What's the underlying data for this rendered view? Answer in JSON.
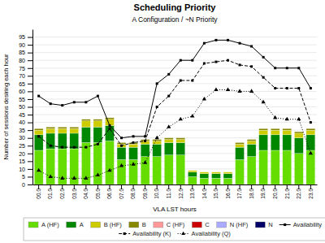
{
  "chart_data": {
    "type": "bar",
    "stacked": true,
    "title": "Scheduling Priority",
    "subtitle": "A Configuration / ~N Priority",
    "x_label": "VLA LST hours",
    "y_label": "Number of sessions desiring each hour",
    "categories": [
      "00.0",
      "01.0",
      "02.0",
      "03.0",
      "04.0",
      "05.0",
      "06.0",
      "07.0",
      "08.0",
      "09.0",
      "10.0",
      "11.0",
      "12.0",
      "13.0",
      "14.0",
      "15.0",
      "16.0",
      "17.0",
      "18.0",
      "19.0",
      "20.0",
      "21.0",
      "22.0",
      "23.0"
    ],
    "series": [
      {
        "name": "A (HF)",
        "color": "#66dd00",
        "values": [
          22,
          23,
          23,
          23,
          27,
          27,
          28,
          16,
          16,
          18,
          18,
          19,
          19,
          5,
          4,
          4,
          4,
          16,
          18,
          22,
          22,
          22,
          20,
          22
        ]
      },
      {
        "name": "A",
        "color": "#008800",
        "values": [
          10,
          10,
          10,
          10,
          10,
          10,
          10,
          8,
          8,
          8,
          8,
          8,
          8,
          3,
          3,
          3,
          3,
          8,
          8,
          10,
          10,
          10,
          10,
          10
        ]
      },
      {
        "name": "B (HF)",
        "color": "#cccc00",
        "values": [
          3,
          3,
          3,
          3,
          4,
          4,
          4,
          2,
          2,
          2,
          2,
          2,
          2,
          1,
          1,
          1,
          1,
          2,
          2,
          3,
          3,
          3,
          3,
          3
        ]
      },
      {
        "name": "B",
        "color": "#888800",
        "values": [
          1,
          1,
          1,
          1,
          1,
          1,
          1,
          1,
          1,
          1,
          1,
          1,
          1,
          0,
          0,
          0,
          0,
          1,
          1,
          1,
          1,
          1,
          1,
          1
        ]
      },
      {
        "name": "C (HF)",
        "color": "#ff9999",
        "values": [
          0,
          0,
          0,
          0,
          0,
          0,
          0,
          0,
          0,
          0,
          0,
          0,
          0,
          0,
          0,
          0,
          0,
          0,
          0,
          0,
          0,
          0,
          0,
          0
        ]
      },
      {
        "name": "C",
        "color": "#cc0000",
        "values": [
          0,
          0,
          0,
          0,
          0,
          0,
          0,
          0,
          0,
          0,
          0,
          0,
          0,
          0,
          0,
          0,
          0,
          0,
          0,
          0,
          0,
          0,
          0,
          0
        ]
      },
      {
        "name": "N (HF)",
        "color": "#aaaaff",
        "values": [
          0,
          0,
          0,
          0,
          0,
          0,
          0,
          0,
          0,
          0,
          0,
          0,
          0,
          0,
          0,
          0,
          0,
          0,
          0,
          0,
          0,
          0,
          0,
          0
        ]
      },
      {
        "name": "N",
        "color": "#000066",
        "values": [
          0,
          0,
          0,
          0,
          0,
          0,
          0,
          0,
          0,
          0,
          0,
          0,
          0,
          0,
          0,
          0,
          0,
          0,
          0,
          0,
          0,
          0,
          0,
          0
        ]
      },
      {
        "name": "Availability",
        "type": "line",
        "color": "#000000",
        "line_style": "solid",
        "marker": "square",
        "values": [
          57,
          52,
          51,
          53,
          53,
          57,
          38,
          30,
          31,
          31,
          65,
          71,
          80,
          80,
          91,
          93,
          93,
          91,
          89,
          82,
          75,
          75,
          75,
          62
        ]
      },
      {
        "name": "Availability (K)",
        "type": "line",
        "color": "#000000",
        "line_style": "dashed",
        "marker": "square",
        "values": [
          31,
          25,
          24,
          24,
          24,
          26,
          36,
          25,
          27,
          28,
          50,
          57,
          67,
          67,
          78,
          79,
          80,
          77,
          76,
          69,
          62,
          62,
          62,
          40
        ]
      },
      {
        "name": "Availability (Q)",
        "type": "line",
        "color": "#000000",
        "line_style": "dotted",
        "marker": "triangle",
        "values": [
          9,
          5,
          4,
          4,
          4,
          6,
          9,
          12,
          13,
          14,
          30,
          37,
          42,
          44,
          55,
          61,
          61,
          60,
          60,
          53,
          43,
          42,
          42,
          20
        ]
      }
    ],
    "ylim": [
      0,
      100
    ],
    "yticks": [
      0,
      5,
      10,
      15,
      20,
      25,
      30,
      35,
      40,
      45,
      50,
      55,
      60,
      65,
      70,
      75,
      80,
      85,
      90,
      95
    ],
    "grid": true,
    "legend": "bottom"
  }
}
